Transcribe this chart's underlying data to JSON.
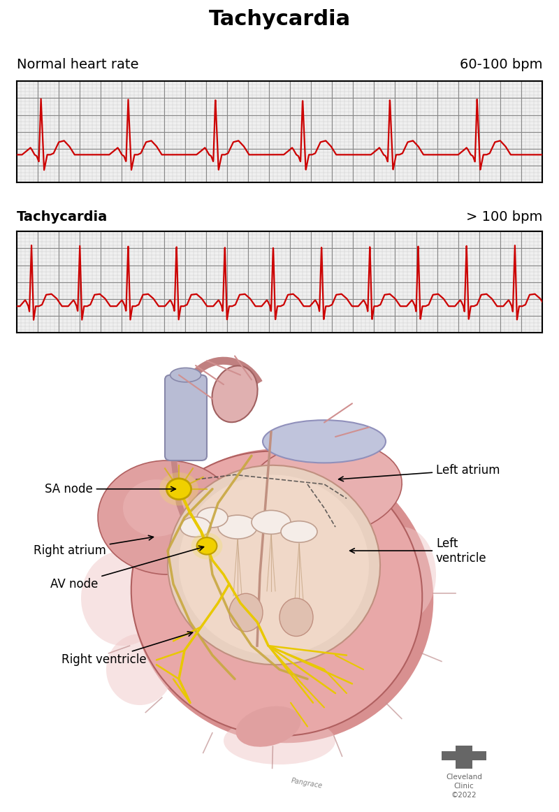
{
  "title": "Tachycardia",
  "title_fontsize": 22,
  "title_fontweight": "bold",
  "normal_label": "Normal heart rate",
  "normal_bpm": "60-100 bpm",
  "tachy_label": "Tachycardia",
  "tachy_bpm": "> 100 bpm",
  "label_fontsize": 14,
  "ecg_color": "#cc0000",
  "grid_minor_color": "#c8c8c8",
  "grid_major_color": "#888888",
  "grid_bg": "#f0f0f0",
  "bg_color": "#ffffff",
  "heart_pink": "#e8a0a0",
  "heart_pink_dark": "#d07070",
  "heart_pink_light": "#f5c8c8",
  "heart_inner": "#f5d5d5",
  "vessel_blue": "#b0b8d0",
  "vessel_gray": "#c8c8c8",
  "conduct_yellow": "#e8c800",
  "conduct_yellow2": "#f0d000",
  "annot_fs": 12,
  "cleveland_color": "#666666"
}
